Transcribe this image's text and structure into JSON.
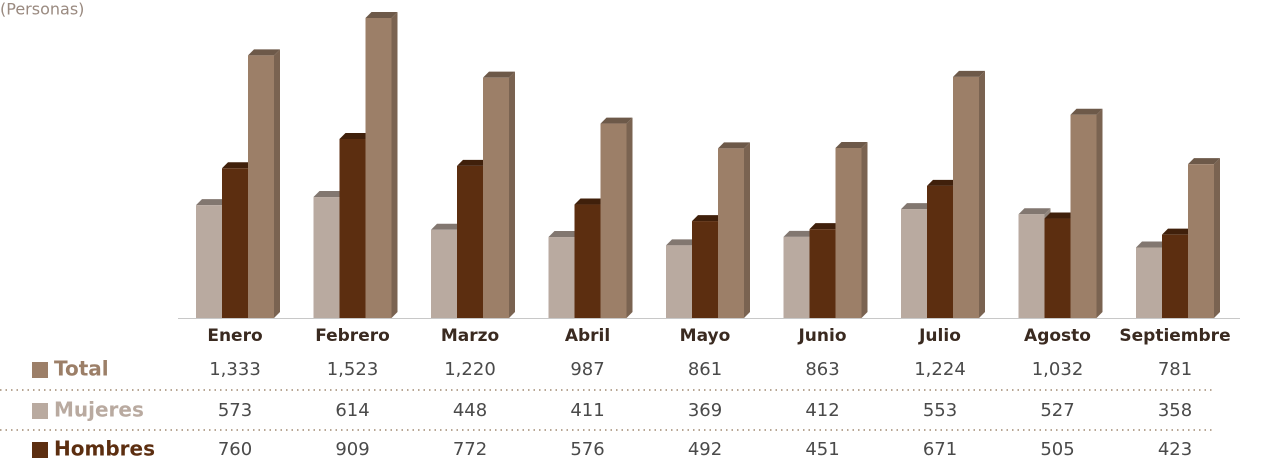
{
  "chart_data": {
    "type": "bar",
    "subtitle": "(Personas)",
    "categories": [
      "Enero",
      "Febrero",
      "Marzo",
      "Abril",
      "Mayo",
      "Junio",
      "Julio",
      "Agosto",
      "Septiembre"
    ],
    "series": [
      {
        "name": "Total",
        "color": "#9c7f68",
        "values": [
          1333,
          1523,
          1220,
          987,
          861,
          863,
          1224,
          1032,
          781
        ],
        "value_labels": [
          "1,333",
          "1,523",
          "1,220",
          "987",
          "861",
          "863",
          "1,224",
          "1,032",
          "781"
        ]
      },
      {
        "name": "Mujeres",
        "color": "#b9aaa0",
        "values": [
          573,
          614,
          448,
          411,
          369,
          412,
          553,
          527,
          358
        ]
      },
      {
        "name": "Hombres",
        "color": "#5c2e10",
        "values": [
          760,
          909,
          772,
          576,
          492,
          451,
          671,
          505,
          423
        ]
      }
    ]
  }
}
